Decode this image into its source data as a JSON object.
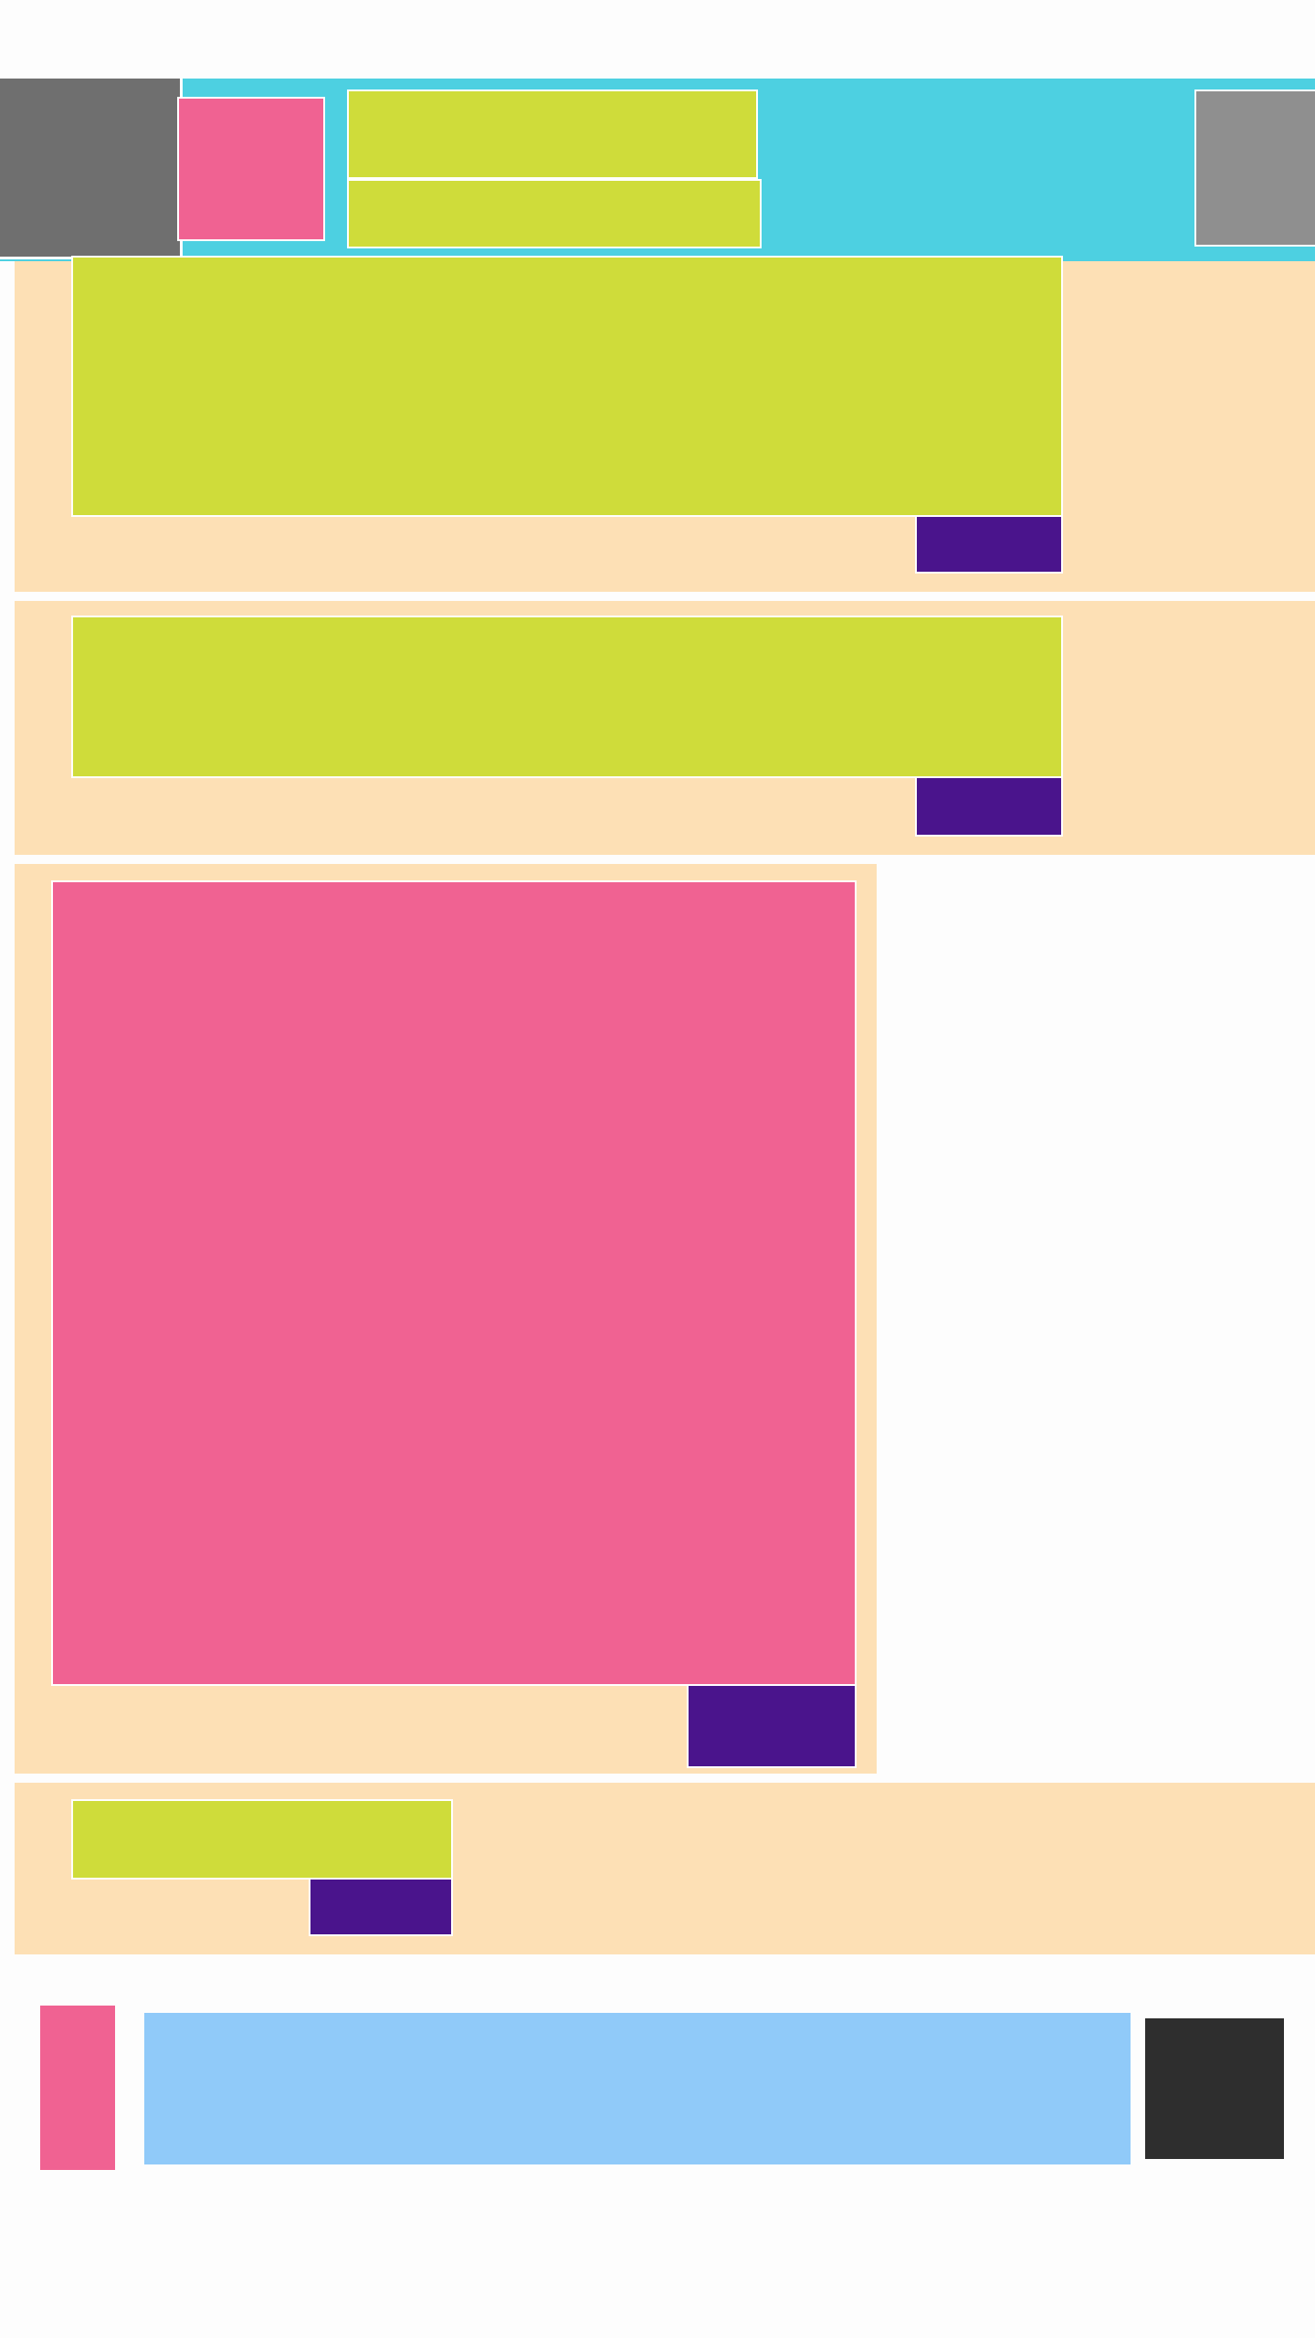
{
  "colors": {
    "header_bg": "#4dd0e1",
    "card_bg": "#fde0b5",
    "lime_block": "#cfdc3a",
    "pink_block": "#f06292",
    "purple_button": "#4a148c",
    "dark_gray_tile": "#6f6f6f",
    "light_gray_tile": "#8f8f8f",
    "input_bar": "#90caf9",
    "send_button": "#2e2e2e",
    "page_bg": "#fdfdfd"
  },
  "header": {
    "avatar": "",
    "thumbnail": "",
    "title": "",
    "subtitle": "",
    "action": ""
  },
  "feed": [
    {
      "kind": "text-post",
      "content": "",
      "action": ""
    },
    {
      "kind": "text-post",
      "content": "",
      "action": ""
    },
    {
      "kind": "image-post",
      "content": "",
      "action": ""
    },
    {
      "kind": "short-post",
      "content": "",
      "action": ""
    }
  ],
  "composer": {
    "attach_icon": "attach-icon",
    "placeholder": "",
    "send_icon": "send-icon"
  }
}
